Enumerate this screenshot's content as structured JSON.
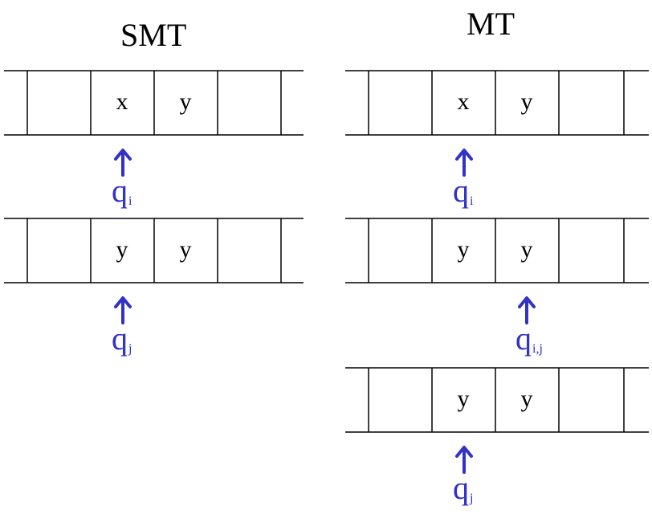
{
  "colors": {
    "line": "#000000",
    "state": "#3232c8",
    "text": "#000000"
  },
  "left_panel": {
    "title": "SMT",
    "tape1": {
      "cells": [
        "",
        "x",
        "y",
        ""
      ]
    },
    "head1": {
      "icon": "up-arrow-icon",
      "state": "q",
      "state_sub": "i"
    },
    "tape2": {
      "cells": [
        "",
        "y",
        "y",
        ""
      ]
    },
    "head2": {
      "icon": "up-arrow-icon",
      "state": "q",
      "state_sub": "j"
    }
  },
  "right_panel": {
    "title": "MT",
    "tape1": {
      "cells": [
        "",
        "x",
        "y",
        ""
      ]
    },
    "head1": {
      "icon": "up-arrow-icon",
      "state": "q",
      "state_sub": "i"
    },
    "tape2": {
      "cells": [
        "",
        "y",
        "y",
        ""
      ]
    },
    "head2": {
      "icon": "up-arrow-icon",
      "state": "q",
      "state_sub": "i,j"
    },
    "tape3": {
      "cells": [
        "",
        "y",
        "y",
        ""
      ]
    },
    "head3": {
      "icon": "up-arrow-icon",
      "state": "q",
      "state_sub": "j"
    }
  }
}
